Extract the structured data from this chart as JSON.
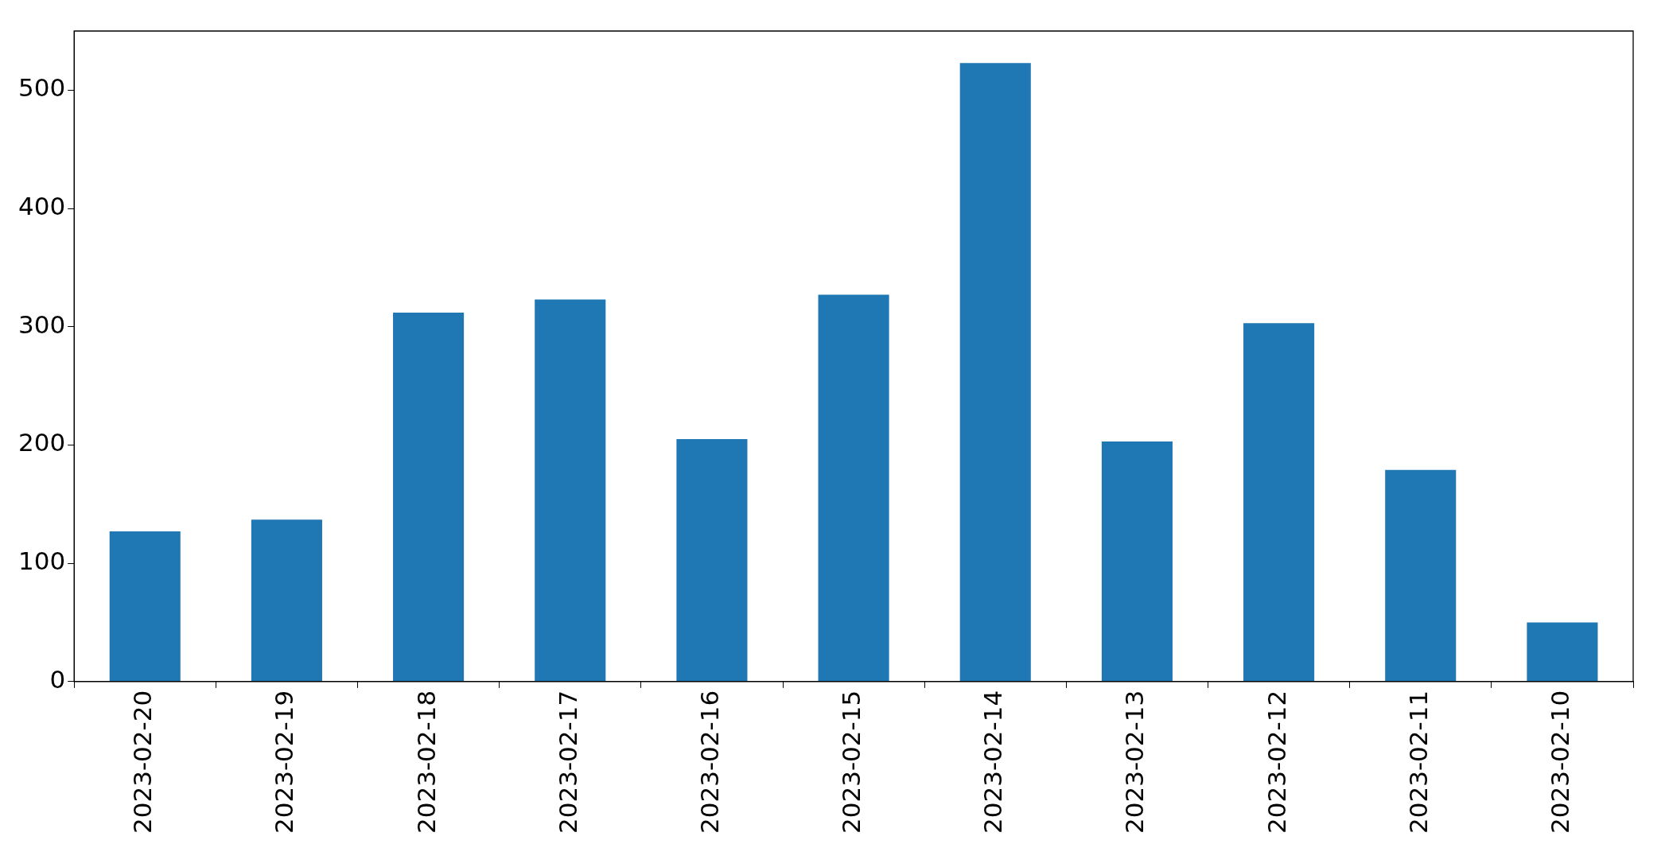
{
  "chart_data": {
    "type": "bar",
    "categories": [
      "2023-02-20",
      "2023-02-19",
      "2023-02-18",
      "2023-02-17",
      "2023-02-16",
      "2023-02-15",
      "2023-02-14",
      "2023-02-13",
      "2023-02-12",
      "2023-02-11",
      "2023-02-10"
    ],
    "values": [
      127,
      137,
      312,
      323,
      205,
      327,
      523,
      203,
      303,
      179,
      50
    ],
    "color": "#1f77b4",
    "ylim": [
      0,
      550
    ],
    "yticks": [
      0,
      100,
      200,
      300,
      400,
      500
    ],
    "grid": false,
    "legend": false
  }
}
